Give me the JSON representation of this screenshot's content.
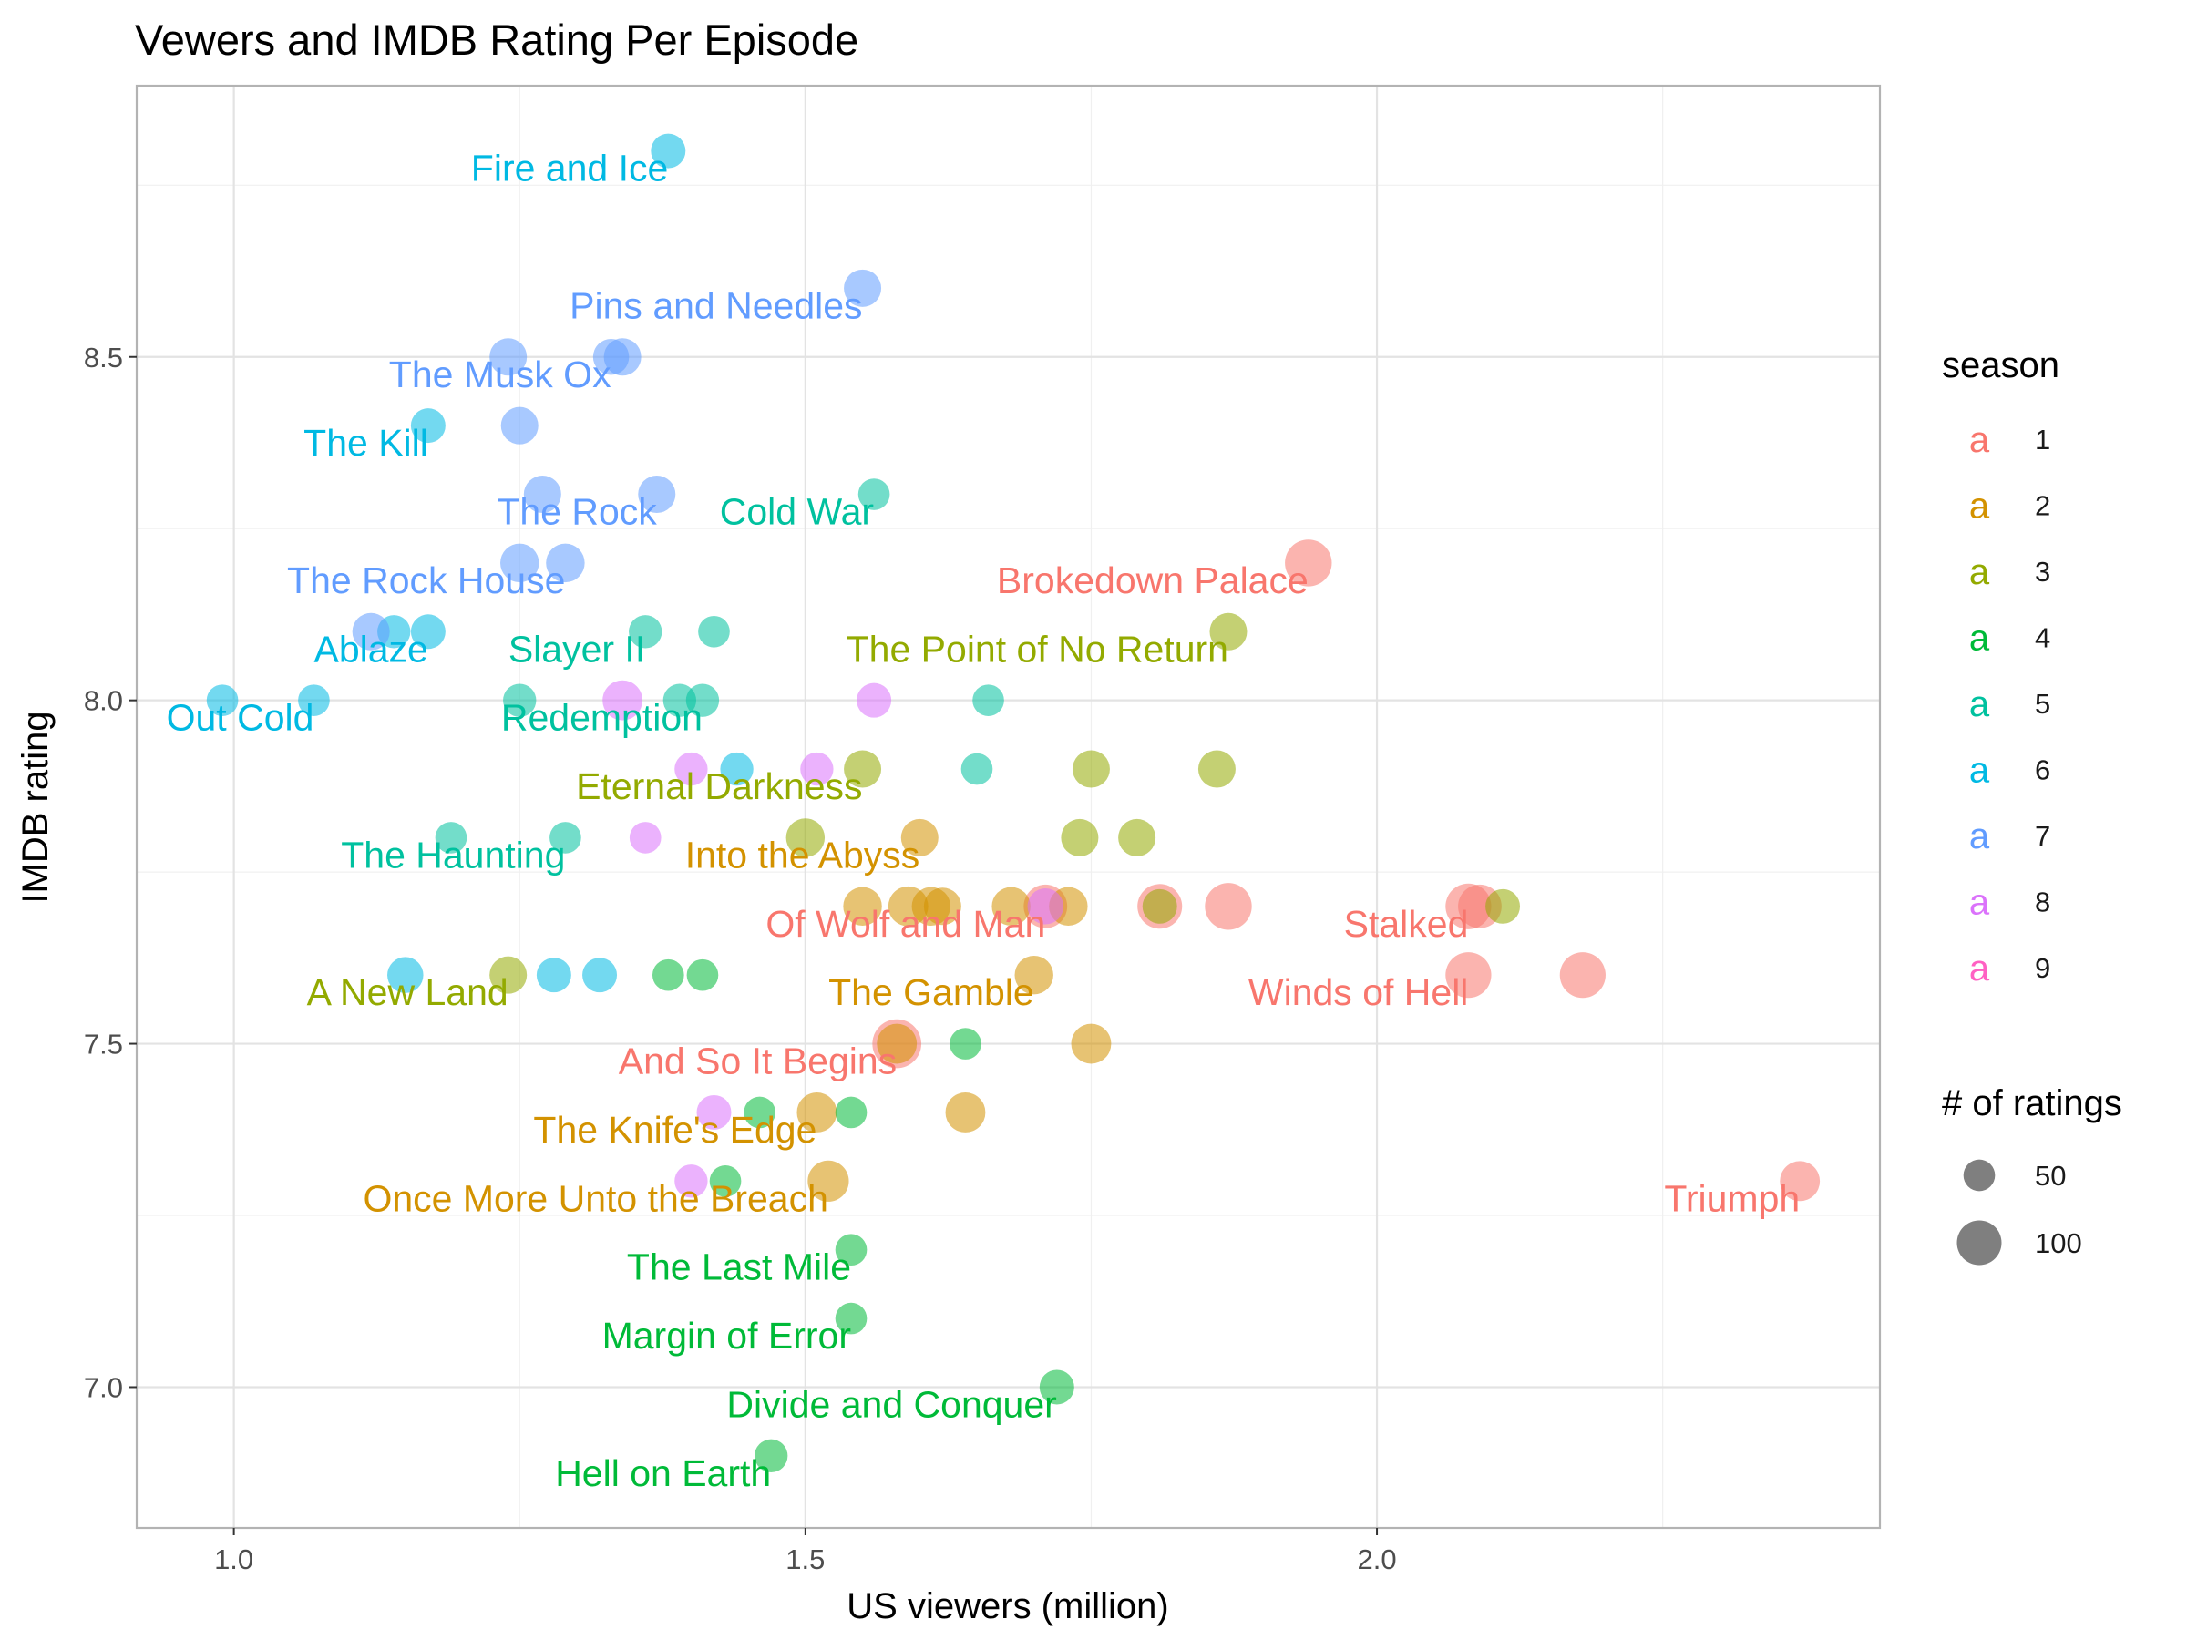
{
  "chart_data": {
    "type": "scatter",
    "title": "Vewers and IMDB Rating Per Episode",
    "xlabel": "US viewers (million)",
    "ylabel": "IMDB rating",
    "xlim": [
      0.915,
      2.44
    ],
    "ylim": [
      6.795,
      8.895
    ],
    "x_ticks": [
      1.0,
      1.5,
      2.0
    ],
    "x_tick_labels": [
      "1.0",
      "1.5",
      "2.0"
    ],
    "y_ticks": [
      7.0,
      7.5,
      8.0,
      8.5
    ],
    "y_tick_labels": [
      "7.0",
      "7.5",
      "8.0",
      "8.5"
    ],
    "grid": true,
    "season_legend": {
      "title": "season",
      "key_glyph": "a",
      "entries": [
        {
          "label": "1",
          "color": "#F8766D"
        },
        {
          "label": "2",
          "color": "#D39200"
        },
        {
          "label": "3",
          "color": "#93AA00"
        },
        {
          "label": "4",
          "color": "#00BA38"
        },
        {
          "label": "5",
          "color": "#00C19F"
        },
        {
          "label": "6",
          "color": "#00B9E3"
        },
        {
          "label": "7",
          "color": "#619CFF"
        },
        {
          "label": "8",
          "color": "#DB72FB"
        },
        {
          "label": "9",
          "color": "#FF61C3"
        }
      ]
    },
    "size_legend": {
      "title": "# of ratings",
      "entries": [
        {
          "label": "50",
          "ratings": 50
        },
        {
          "label": "100",
          "ratings": 100
        }
      ]
    },
    "legend_position": "right",
    "points": [
      {
        "x": 1.94,
        "y": 8.2,
        "season": "1",
        "ratings": 110
      },
      {
        "x": 2.08,
        "y": 7.7,
        "season": "1",
        "ratings": 105
      },
      {
        "x": 2.09,
        "y": 7.7,
        "season": "1",
        "ratings": 95
      },
      {
        "x": 2.08,
        "y": 7.6,
        "season": "1",
        "ratings": 105
      },
      {
        "x": 2.18,
        "y": 7.6,
        "season": "1",
        "ratings": 105
      },
      {
        "x": 1.87,
        "y": 7.7,
        "season": "1",
        "ratings": 110
      },
      {
        "x": 1.81,
        "y": 7.7,
        "season": "1",
        "ratings": 100
      },
      {
        "x": 1.71,
        "y": 7.7,
        "season": "1",
        "ratings": 95
      },
      {
        "x": 1.58,
        "y": 7.5,
        "season": "1",
        "ratings": 120
      },
      {
        "x": 2.37,
        "y": 7.3,
        "season": "1",
        "ratings": 80
      },
      {
        "x": 1.55,
        "y": 7.7,
        "season": "2",
        "ratings": 75
      },
      {
        "x": 1.59,
        "y": 7.7,
        "season": "2",
        "ratings": 80
      },
      {
        "x": 1.61,
        "y": 7.7,
        "season": "2",
        "ratings": 75
      },
      {
        "x": 1.62,
        "y": 7.7,
        "season": "2",
        "ratings": 70
      },
      {
        "x": 1.68,
        "y": 7.7,
        "season": "2",
        "ratings": 75
      },
      {
        "x": 1.73,
        "y": 7.7,
        "season": "2",
        "ratings": 75
      },
      {
        "x": 1.6,
        "y": 7.8,
        "season": "2",
        "ratings": 70
      },
      {
        "x": 1.7,
        "y": 7.6,
        "season": "2",
        "ratings": 75
      },
      {
        "x": 1.75,
        "y": 7.5,
        "season": "2",
        "ratings": 80
      },
      {
        "x": 1.58,
        "y": 7.5,
        "season": "2",
        "ratings": 80
      },
      {
        "x": 1.51,
        "y": 7.4,
        "season": "2",
        "ratings": 80
      },
      {
        "x": 1.64,
        "y": 7.4,
        "season": "2",
        "ratings": 80
      },
      {
        "x": 1.52,
        "y": 7.3,
        "season": "2",
        "ratings": 85
      },
      {
        "x": 1.87,
        "y": 8.1,
        "season": "3",
        "ratings": 70
      },
      {
        "x": 1.55,
        "y": 7.9,
        "season": "3",
        "ratings": 70
      },
      {
        "x": 1.75,
        "y": 7.9,
        "season": "3",
        "ratings": 70
      },
      {
        "x": 1.86,
        "y": 7.9,
        "season": "3",
        "ratings": 70
      },
      {
        "x": 1.5,
        "y": 7.8,
        "season": "3",
        "ratings": 75
      },
      {
        "x": 1.74,
        "y": 7.8,
        "season": "3",
        "ratings": 70
      },
      {
        "x": 1.79,
        "y": 7.8,
        "season": "3",
        "ratings": 70
      },
      {
        "x": 1.81,
        "y": 7.7,
        "season": "3",
        "ratings": 60
      },
      {
        "x": 2.11,
        "y": 7.7,
        "season": "3",
        "ratings": 60
      },
      {
        "x": 1.24,
        "y": 7.6,
        "season": "3",
        "ratings": 70
      },
      {
        "x": 1.38,
        "y": 7.6,
        "season": "4",
        "ratings": 50
      },
      {
        "x": 1.41,
        "y": 7.6,
        "season": "4",
        "ratings": 50
      },
      {
        "x": 1.64,
        "y": 7.5,
        "season": "4",
        "ratings": 50
      },
      {
        "x": 1.46,
        "y": 7.4,
        "season": "4",
        "ratings": 50
      },
      {
        "x": 1.54,
        "y": 7.4,
        "season": "4",
        "ratings": 50
      },
      {
        "x": 1.43,
        "y": 7.3,
        "season": "4",
        "ratings": 50
      },
      {
        "x": 1.54,
        "y": 7.2,
        "season": "4",
        "ratings": 50
      },
      {
        "x": 1.54,
        "y": 7.1,
        "season": "4",
        "ratings": 50
      },
      {
        "x": 1.72,
        "y": 7.0,
        "season": "4",
        "ratings": 60
      },
      {
        "x": 1.47,
        "y": 6.9,
        "season": "4",
        "ratings": 55
      },
      {
        "x": 1.56,
        "y": 8.3,
        "season": "5",
        "ratings": 50
      },
      {
        "x": 1.42,
        "y": 8.1,
        "season": "5",
        "ratings": 50
      },
      {
        "x": 1.36,
        "y": 8.1,
        "season": "5",
        "ratings": 55
      },
      {
        "x": 1.25,
        "y": 8.0,
        "season": "5",
        "ratings": 55
      },
      {
        "x": 1.39,
        "y": 8.0,
        "season": "5",
        "ratings": 55
      },
      {
        "x": 1.41,
        "y": 8.0,
        "season": "5",
        "ratings": 55
      },
      {
        "x": 1.66,
        "y": 8.0,
        "season": "5",
        "ratings": 50
      },
      {
        "x": 1.65,
        "y": 7.9,
        "season": "5",
        "ratings": 50
      },
      {
        "x": 1.19,
        "y": 7.8,
        "season": "5",
        "ratings": 50
      },
      {
        "x": 1.29,
        "y": 7.8,
        "season": "5",
        "ratings": 50
      },
      {
        "x": 1.38,
        "y": 8.8,
        "season": "6",
        "ratings": 60
      },
      {
        "x": 1.17,
        "y": 8.4,
        "season": "6",
        "ratings": 60
      },
      {
        "x": 1.14,
        "y": 8.1,
        "season": "6",
        "ratings": 55
      },
      {
        "x": 1.17,
        "y": 8.1,
        "season": "6",
        "ratings": 60
      },
      {
        "x": 0.99,
        "y": 8.0,
        "season": "6",
        "ratings": 50
      },
      {
        "x": 1.07,
        "y": 8.0,
        "season": "6",
        "ratings": 50
      },
      {
        "x": 1.44,
        "y": 7.9,
        "season": "6",
        "ratings": 55
      },
      {
        "x": 1.15,
        "y": 7.6,
        "season": "6",
        "ratings": 65
      },
      {
        "x": 1.28,
        "y": 7.6,
        "season": "6",
        "ratings": 60
      },
      {
        "x": 1.32,
        "y": 7.6,
        "season": "6",
        "ratings": 60
      },
      {
        "x": 1.55,
        "y": 8.6,
        "season": "7",
        "ratings": 70
      },
      {
        "x": 1.24,
        "y": 8.5,
        "season": "7",
        "ratings": 70
      },
      {
        "x": 1.33,
        "y": 8.5,
        "season": "7",
        "ratings": 65
      },
      {
        "x": 1.34,
        "y": 8.5,
        "season": "7",
        "ratings": 70
      },
      {
        "x": 1.25,
        "y": 8.4,
        "season": "7",
        "ratings": 70
      },
      {
        "x": 1.27,
        "y": 8.3,
        "season": "7",
        "ratings": 70
      },
      {
        "x": 1.37,
        "y": 8.3,
        "season": "7",
        "ratings": 70
      },
      {
        "x": 1.25,
        "y": 8.2,
        "season": "7",
        "ratings": 75
      },
      {
        "x": 1.29,
        "y": 8.2,
        "season": "7",
        "ratings": 75
      },
      {
        "x": 1.12,
        "y": 8.1,
        "season": "7",
        "ratings": 70
      },
      {
        "x": 1.34,
        "y": 8.0,
        "season": "8",
        "ratings": 80
      },
      {
        "x": 1.56,
        "y": 8.0,
        "season": "8",
        "ratings": 60
      },
      {
        "x": 1.4,
        "y": 7.9,
        "season": "8",
        "ratings": 55
      },
      {
        "x": 1.51,
        "y": 7.9,
        "season": "8",
        "ratings": 55
      },
      {
        "x": 1.36,
        "y": 7.8,
        "season": "8",
        "ratings": 50
      },
      {
        "x": 1.71,
        "y": 7.7,
        "season": "8",
        "ratings": 65
      },
      {
        "x": 1.42,
        "y": 7.4,
        "season": "8",
        "ratings": 60
      },
      {
        "x": 1.4,
        "y": 7.3,
        "season": "8",
        "ratings": 55
      }
    ],
    "annotations": [
      {
        "text": "Fire and Ice",
        "x": 1.38,
        "y": 8.8,
        "season": "6"
      },
      {
        "text": "Pins and Needles",
        "x": 1.55,
        "y": 8.6,
        "season": "7"
      },
      {
        "text": "The Musk Ox",
        "x": 1.33,
        "y": 8.5,
        "season": "7"
      },
      {
        "text": "The Kill",
        "x": 1.17,
        "y": 8.4,
        "season": "6"
      },
      {
        "text": "The Rock",
        "x": 1.37,
        "y": 8.3,
        "season": "7"
      },
      {
        "text": "Cold War",
        "x": 1.56,
        "y": 8.3,
        "season": "5"
      },
      {
        "text": "Brokedown Palace",
        "x": 1.94,
        "y": 8.2,
        "season": "1"
      },
      {
        "text": "The Rock House",
        "x": 1.29,
        "y": 8.2,
        "season": "7"
      },
      {
        "text": "Ablaze",
        "x": 1.17,
        "y": 8.1,
        "season": "6"
      },
      {
        "text": "Slayer II",
        "x": 1.36,
        "y": 8.1,
        "season": "5"
      },
      {
        "text": "The Point of No Return",
        "x": 1.87,
        "y": 8.1,
        "season": "3"
      },
      {
        "text": "Out Cold",
        "x": 1.07,
        "y": 8.0,
        "season": "6"
      },
      {
        "text": "Redemption",
        "x": 1.41,
        "y": 8.0,
        "season": "5"
      },
      {
        "text": "Eternal Darkness",
        "x": 1.55,
        "y": 7.9,
        "season": "3"
      },
      {
        "text": "The Haunting",
        "x": 1.29,
        "y": 7.8,
        "season": "5"
      },
      {
        "text": "Into the Abyss",
        "x": 1.6,
        "y": 7.8,
        "season": "2"
      },
      {
        "text": "Of Wolf and Man",
        "x": 1.71,
        "y": 7.7,
        "season": "1"
      },
      {
        "text": "Stalked",
        "x": 2.08,
        "y": 7.7,
        "season": "1"
      },
      {
        "text": "A New Land",
        "x": 1.24,
        "y": 7.6,
        "season": "3"
      },
      {
        "text": "The Gamble",
        "x": 1.7,
        "y": 7.6,
        "season": "2"
      },
      {
        "text": "Winds of Hell",
        "x": 2.08,
        "y": 7.6,
        "season": "1"
      },
      {
        "text": "And So It Begins",
        "x": 1.58,
        "y": 7.5,
        "season": "1"
      },
      {
        "text": "The Knife's Edge",
        "x": 1.51,
        "y": 7.4,
        "season": "2"
      },
      {
        "text": "Once More Unto the Breach",
        "x": 1.52,
        "y": 7.3,
        "season": "2"
      },
      {
        "text": "Triumph",
        "x": 2.37,
        "y": 7.3,
        "season": "1"
      },
      {
        "text": "The Last Mile",
        "x": 1.54,
        "y": 7.2,
        "season": "4"
      },
      {
        "text": "Margin of Error",
        "x": 1.54,
        "y": 7.1,
        "season": "4"
      },
      {
        "text": "Divide and Conquer",
        "x": 1.72,
        "y": 7.0,
        "season": "4"
      },
      {
        "text": "Hell on Earth",
        "x": 1.47,
        "y": 6.9,
        "season": "4"
      }
    ]
  }
}
